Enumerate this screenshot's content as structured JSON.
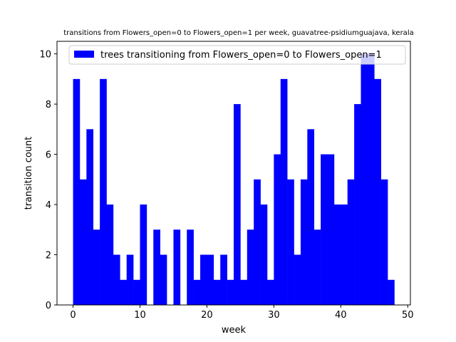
{
  "chart_data": {
    "type": "bar",
    "title": "transitions from Flowers_open=0 to Flowers_open=1 per week, guavatree-psidiumguajava, kerala",
    "xlabel": "week",
    "ylabel": "transition count",
    "xlim": [
      -2.4,
      50.4
    ],
    "ylim": [
      0,
      10.5
    ],
    "xticks": [
      0,
      10,
      20,
      30,
      40,
      50
    ],
    "yticks": [
      0,
      2,
      4,
      6,
      8,
      10
    ],
    "bar_width": 1,
    "bar_color": "#0000ff",
    "legend": {
      "label": "trees transitioning from Flowers_open=0 to Flowers_open=1",
      "location": "top-right"
    },
    "x": [
      0,
      1,
      2,
      3,
      4,
      5,
      6,
      7,
      8,
      9,
      10,
      11,
      12,
      13,
      14,
      15,
      16,
      17,
      18,
      19,
      20,
      21,
      22,
      23,
      24,
      25,
      26,
      27,
      28,
      29,
      30,
      31,
      32,
      33,
      34,
      35,
      36,
      37,
      38,
      39,
      40,
      41,
      42,
      43,
      44,
      45,
      46,
      47
    ],
    "values": [
      9,
      5,
      7,
      3,
      9,
      4,
      2,
      1,
      2,
      1,
      4,
      0,
      3,
      2,
      0,
      3,
      0,
      3,
      1,
      2,
      2,
      1,
      2,
      1,
      8,
      1,
      3,
      5,
      4,
      1,
      6,
      9,
      5,
      2,
      5,
      7,
      3,
      6,
      6,
      4,
      4,
      5,
      8,
      10,
      10,
      9,
      5,
      1
    ]
  }
}
